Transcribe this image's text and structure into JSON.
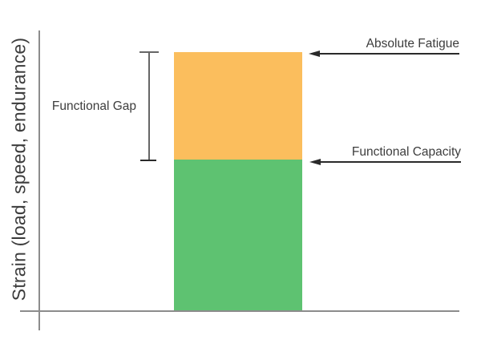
{
  "chart_data": {
    "type": "bar",
    "title": "",
    "xlabel": "",
    "ylabel": "Strain (load, speed, endurance)",
    "x_axis_ticks": [],
    "y_axis_ticks": [],
    "grid": false,
    "legend": "none",
    "description": "Conceptual single stacked bar: green segment from baseline up to Functional Capacity, orange segment (Functional Gap) from Functional Capacity up to Absolute Fatigue.",
    "categories": [
      "bar"
    ],
    "series": [
      {
        "name": "Functional Capacity",
        "values": [
          0.585
        ],
        "color": "#5ec271"
      },
      {
        "name": "Functional Gap",
        "values": [
          0.415
        ],
        "color": "#fbbe5d"
      }
    ],
    "ylim": [
      0,
      1
    ],
    "annotations": [
      {
        "text": "Absolute Fatigue",
        "points_to": "top of orange segment",
        "arrow": "left"
      },
      {
        "text": "Functional Capacity",
        "points_to": "green/orange boundary",
        "arrow": "left"
      },
      {
        "text": "Functional Gap",
        "points_to": "bracket spanning orange segment"
      }
    ]
  },
  "labels": {
    "ylabel": "Strain (load, speed, endurance)",
    "functional_gap": "Functional Gap",
    "absolute_fatigue": "Absolute Fatigue",
    "functional_capacity": "Functional Capacity"
  },
  "colors": {
    "bar_orange": "#fbbe5d",
    "bar_green": "#5ec271",
    "axis_line": "#8c8c8c",
    "bracket": "#666666",
    "bracket_cap_bottom": "#2a2a2a",
    "arrow": "#2a2a2a",
    "text": "#3d3d3d"
  }
}
